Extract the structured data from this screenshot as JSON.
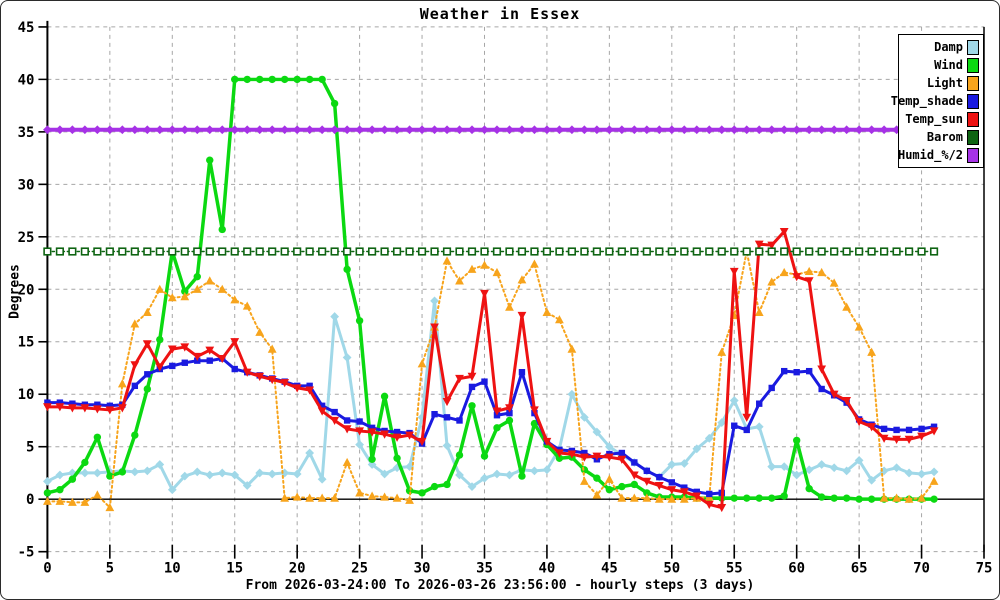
{
  "window": {
    "title": "Weather in Essex"
  },
  "chart_data": {
    "type": "line",
    "title": "Weather in Essex",
    "ylabel": "Degrees",
    "xlabel": "From 2026-03-24:00 To 2026-03-26 23:56:00 - hourly steps (3 days)",
    "points": 72,
    "x_start": 0,
    "x_step": 1,
    "xlim": [
      0,
      75
    ],
    "ylim": [
      -5,
      45
    ],
    "x_tick_step": 5,
    "y_tick_step": 5,
    "grid": true,
    "grid_color": "#a6a6a6",
    "axis_color": "#000000",
    "zero_line": true,
    "legend_position": "top-right",
    "series": [
      {
        "name": "Damp",
        "color": "#a0d8e8",
        "marker": "diamond",
        "line": "solid",
        "width": 3,
        "values": [
          1.7,
          2.3,
          2.5,
          2.5,
          2.5,
          2.6,
          2.7,
          2.6,
          2.7,
          3.3,
          0.9,
          2.2,
          2.6,
          2.3,
          2.5,
          2.3,
          1.3,
          2.5,
          2.4,
          2.5,
          2.4,
          4.4,
          1.9,
          17.4,
          13.5,
          5.2,
          3.3,
          2.4,
          3.0,
          3.1,
          7.8,
          18.9,
          5.1,
          2.3,
          1.2,
          2.0,
          2.4,
          2.3,
          2.8,
          2.7,
          2.8,
          4.8,
          10.0,
          7.8,
          6.4,
          5.0,
          4.2,
          3.5,
          2.7,
          2.1,
          3.3,
          3.4,
          4.8,
          5.8,
          7.3,
          9.4,
          6.7,
          6.9,
          3.1,
          3.1,
          2.3,
          2.8,
          3.3,
          3.0,
          2.7,
          3.7,
          1.8,
          2.7,
          3.0,
          2.5,
          2.4,
          2.6
        ]
      },
      {
        "name": "Wind",
        "color": "#0bd911",
        "marker": "circle",
        "line": "solid",
        "width": 3.5,
        "values": [
          0.6,
          0.9,
          1.9,
          3.5,
          5.9,
          2.2,
          2.6,
          6.1,
          10.5,
          15.2,
          23.6,
          19.8,
          21.2,
          32.3,
          25.7,
          40,
          40,
          40,
          40,
          40,
          40,
          40,
          40,
          37.7,
          21.9,
          17.0,
          3.8,
          9.8,
          3.9,
          0.8,
          0.6,
          1.2,
          1.4,
          4.2,
          8.9,
          4.1,
          6.8,
          7.5,
          2.2,
          7.2,
          5.2,
          3.9,
          4.0,
          2.8,
          2.0,
          0.9,
          1.2,
          1.4,
          0.6,
          0.2,
          0.2,
          0.2,
          0.1,
          0.1,
          0.1,
          0.1,
          0.1,
          0.1,
          0.1,
          0.3,
          5.6,
          1.0,
          0.2,
          0.1,
          0.1,
          0,
          0,
          0,
          0,
          0,
          0,
          0
        ]
      },
      {
        "name": "Light",
        "color": "#f7a41c",
        "marker": "triangle-up",
        "line": "dotted",
        "width": 2,
        "values": [
          -0.2,
          -0.2,
          -0.3,
          -0.3,
          0.4,
          -0.8,
          11.0,
          16.7,
          17.8,
          20.0,
          19.2,
          19.3,
          20.0,
          20.8,
          20.0,
          19.0,
          18.4,
          15.9,
          14.3,
          0.1,
          0.2,
          0.1,
          0.1,
          0.1,
          3.5,
          0.6,
          0.3,
          0.2,
          0.1,
          -0.1,
          12.9,
          16.4,
          22.7,
          20.8,
          21.9,
          22.3,
          21.6,
          18.3,
          20.9,
          22.4,
          17.8,
          17.1,
          14.3,
          1.7,
          0.4,
          1.9,
          0.1,
          0.1,
          0.1,
          0,
          0,
          0,
          0.1,
          0.2,
          14.0,
          17.5,
          23.6,
          17.8,
          20.7,
          21.6,
          21.4,
          21.7,
          21.6,
          20.6,
          18.3,
          16.4,
          14.0,
          0.1,
          0.1,
          0,
          0.1,
          1.7
        ]
      },
      {
        "name": "Temp_shade",
        "color": "#1a1ae0",
        "marker": "square",
        "line": "solid",
        "width": 3,
        "values": [
          9.2,
          9.2,
          9.1,
          9.0,
          9.0,
          8.9,
          9.0,
          10.8,
          11.9,
          12.4,
          12.7,
          13.0,
          13.2,
          13.2,
          13.4,
          12.4,
          12.1,
          11.8,
          11.5,
          11.2,
          10.8,
          10.8,
          8.9,
          8.3,
          7.5,
          7.4,
          6.8,
          6.5,
          6.4,
          6.3,
          5.3,
          8.1,
          7.8,
          7.5,
          10.7,
          11.2,
          8.0,
          8.2,
          12.1,
          8.2,
          5.5,
          4.7,
          4.6,
          4.4,
          3.8,
          4.3,
          4.4,
          3.5,
          2.7,
          2.1,
          1.6,
          1.1,
          0.7,
          0.5,
          0.6,
          7.0,
          6.6,
          9.1,
          10.6,
          12.2,
          12.1,
          12.2,
          10.5,
          9.9,
          9.2,
          7.6,
          7.1,
          6.7,
          6.6,
          6.6,
          6.7,
          6.9
        ]
      },
      {
        "name": "Temp_sun",
        "color": "#ee1212",
        "marker": "triangle-down",
        "line": "solid",
        "width": 3,
        "values": [
          8.8,
          8.8,
          8.7,
          8.7,
          8.6,
          8.5,
          8.7,
          12.8,
          14.8,
          12.6,
          14.3,
          14.5,
          13.6,
          14.2,
          13.4,
          15.0,
          12.1,
          11.7,
          11.4,
          11.1,
          10.6,
          10.4,
          8.4,
          7.5,
          6.7,
          6.5,
          6.4,
          6.2,
          5.9,
          6.1,
          5.5,
          16.4,
          9.3,
          11.5,
          11.7,
          19.6,
          8.4,
          8.7,
          17.5,
          8.5,
          5.5,
          4.4,
          4.3,
          4.0,
          4.1,
          4.0,
          3.8,
          2.3,
          1.7,
          1.3,
          0.9,
          0.7,
          0.3,
          -0.5,
          -0.8,
          21.7,
          7.8,
          24.3,
          24.2,
          25.5,
          21.2,
          20.8,
          12.4,
          10.0,
          9.4,
          7.4,
          6.9,
          5.8,
          5.7,
          5.7,
          6.0,
          6.5
        ]
      },
      {
        "name": "Barom",
        "color": "#0e6412",
        "marker": "open-square",
        "line": "dotted",
        "width": 1.5,
        "constant": 23.6
      },
      {
        "name": "Humid_%/2",
        "color": "#a632e6",
        "marker": "diamond",
        "line": "solid",
        "width": 4,
        "constant": 35.2
      }
    ]
  }
}
